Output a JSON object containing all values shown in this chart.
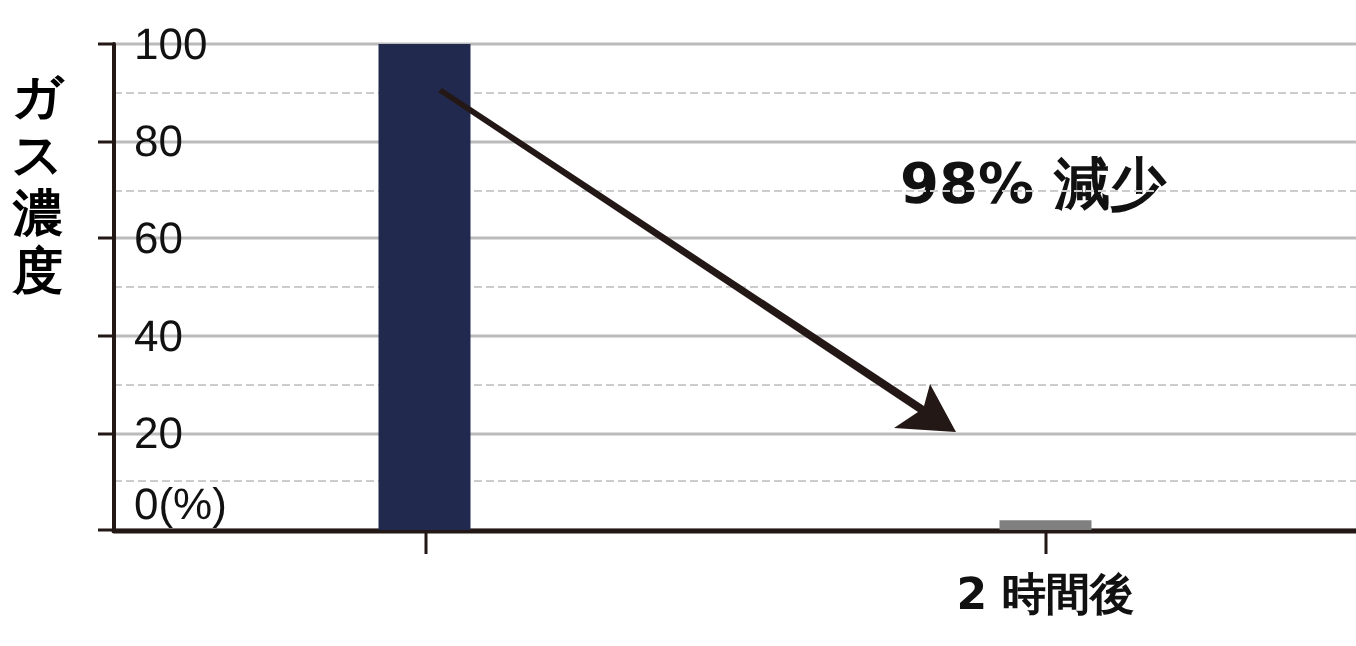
{
  "chart_data": {
    "type": "bar",
    "ylabel": "ガス濃度",
    "categories": [
      null,
      "2 時間後"
    ],
    "values": [
      100,
      2
    ],
    "colors": [
      "#212a4e",
      "#808080"
    ],
    "ylim": [
      0,
      100
    ],
    "yticks": [
      {
        "value": 0,
        "label": "0(%)"
      },
      20,
      40,
      60,
      80,
      100
    ],
    "grid": "y",
    "annotations": [
      "98% 減少"
    ]
  }
}
